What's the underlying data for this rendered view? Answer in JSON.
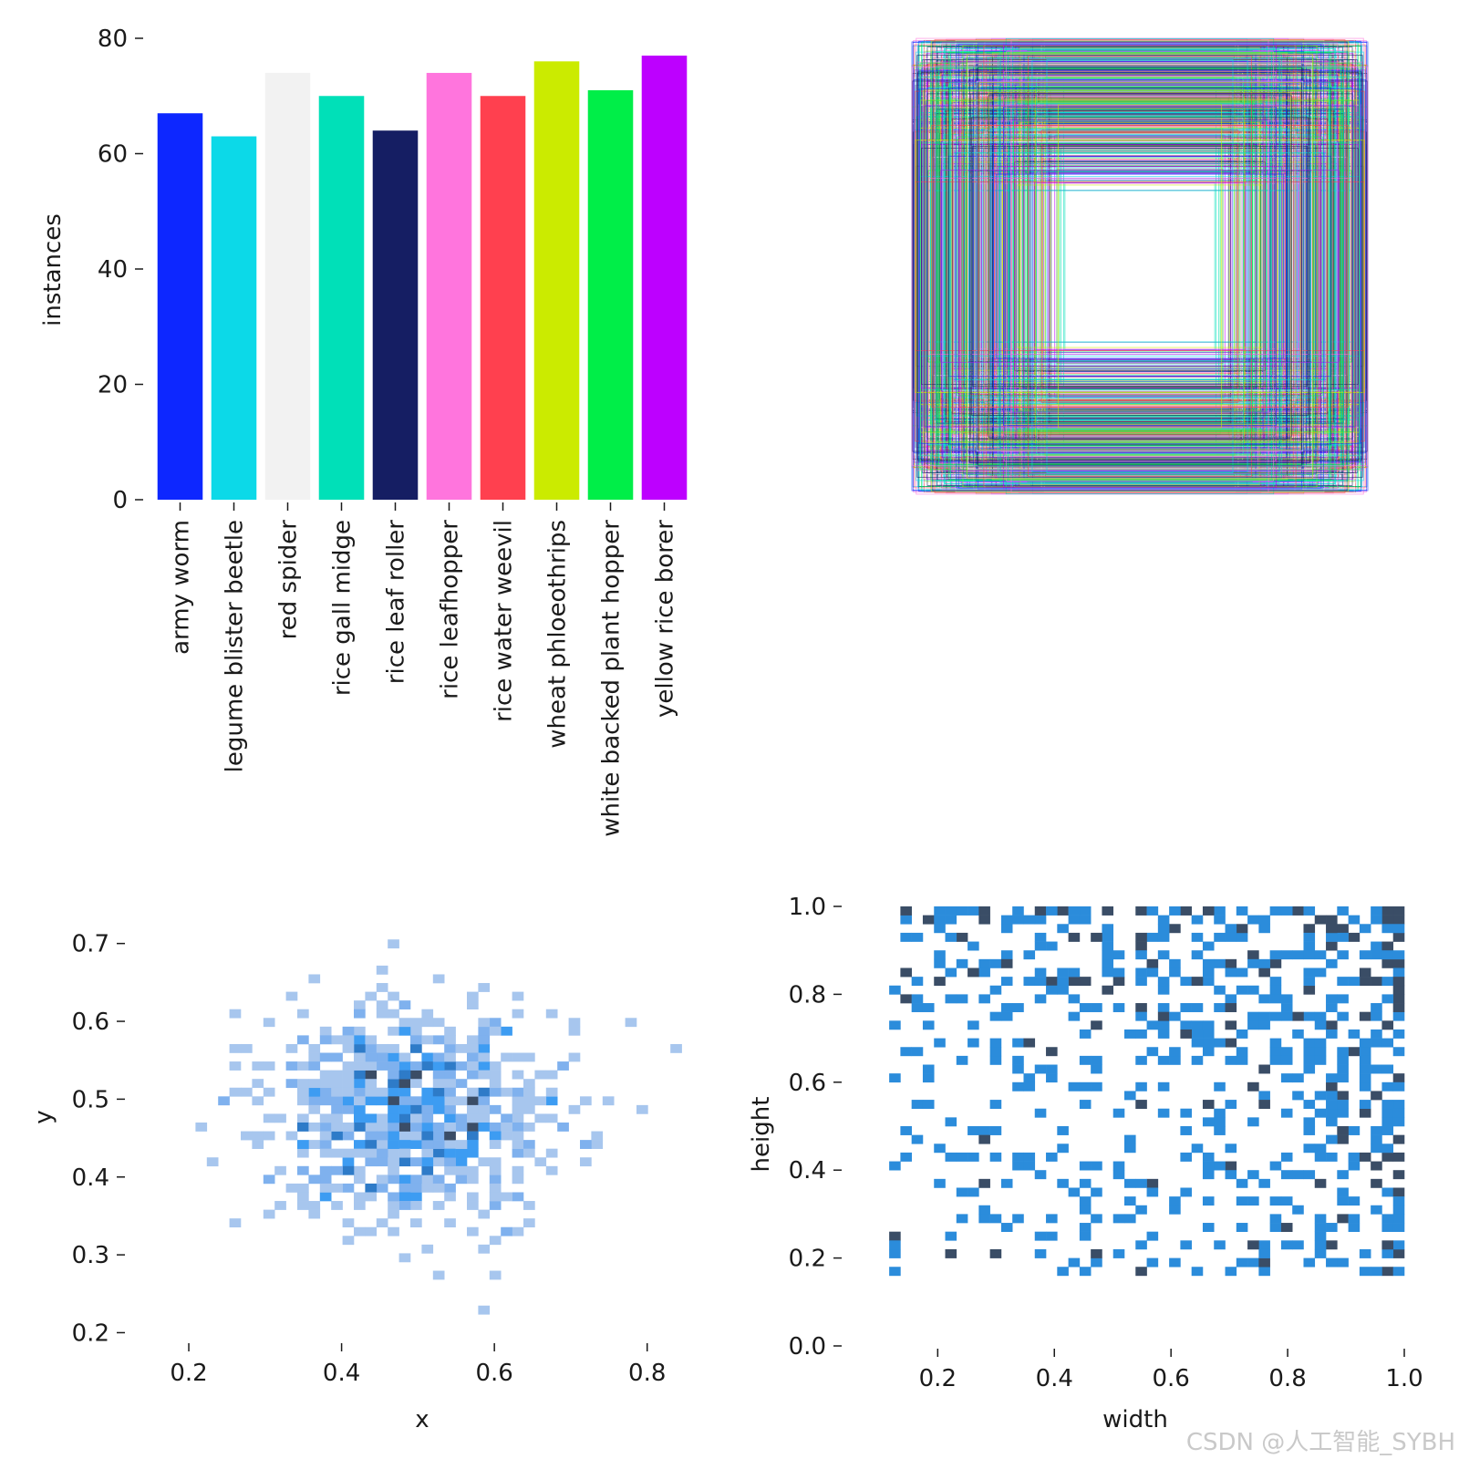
{
  "chart_data": [
    {
      "id": "labels-bar",
      "type": "bar",
      "title": "",
      "xlabel": "",
      "ylabel": "instances",
      "ylim": [
        0,
        80
      ],
      "yticks": [
        0,
        20,
        40,
        60,
        80
      ],
      "ytick_labels": [
        "0",
        "20",
        "40",
        "60",
        "80"
      ],
      "categories": [
        "army worm",
        "legume blister beetle",
        "red spider",
        "rice gall midge",
        "rice leaf roller",
        "rice leafhopper",
        "rice water weevil",
        "wheat phloeothrips",
        "white backed plant hopper",
        "yellow rice borer"
      ],
      "values": [
        67,
        63,
        74,
        70,
        64,
        74,
        70,
        76,
        71,
        77
      ],
      "colors": [
        "#0d27ff",
        "#0cd9e8",
        "#f2f2f2",
        "#00e0b8",
        "#151e63",
        "#ff75dd",
        "#ff404f",
        "#cbeb00",
        "#00ee48",
        "#bd00ff"
      ]
    },
    {
      "id": "box-overlay",
      "type": "other",
      "description": "",
      "series_colors": [
        "#0d27ff",
        "#0cd9e8",
        "#f2f2f2",
        "#00e0b8",
        "#151e63",
        "#ff75dd",
        "#ff404f",
        "#cbeb00",
        "#00ee48",
        "#bd00ff"
      ],
      "box_count": 700
    },
    {
      "id": "xy-hist",
      "type": "heatmap",
      "title": "",
      "xlabel": "x",
      "ylabel": "y",
      "xlim": [
        0.12,
        0.86
      ],
      "ylim": [
        0.19,
        0.75
      ],
      "xticks": [
        0.2,
        0.4,
        0.6,
        0.8
      ],
      "xtick_labels": [
        "0.2",
        "0.4",
        "0.6",
        "0.8"
      ],
      "yticks": [
        0.2,
        0.3,
        0.4,
        0.5,
        0.6,
        0.7
      ],
      "ytick_labels": [
        "0.2",
        "0.3",
        "0.4",
        "0.5",
        "0.6",
        "0.7"
      ],
      "bins": 50,
      "x_center": 0.49,
      "y_center": 0.48,
      "x_spread": 0.1,
      "y_spread": 0.075,
      "sample_count": 700,
      "palette": [
        "#a7c6ee",
        "#7fb1ee",
        "#3d9cf2",
        "#2e7bc8",
        "#3b4d66"
      ]
    },
    {
      "id": "wh-hist",
      "type": "heatmap",
      "title": "",
      "xlabel": "width",
      "ylabel": "height",
      "xlim": [
        0.04,
        1.0
      ],
      "ylim": [
        0.0,
        1.0
      ],
      "xticks": [
        0.2,
        0.4,
        0.6,
        0.8,
        1.0
      ],
      "xtick_labels": [
        "0.2",
        "0.4",
        "0.6",
        "0.8",
        "1.0"
      ],
      "yticks": [
        0.0,
        0.2,
        0.4,
        0.6,
        0.8,
        1.0
      ],
      "ytick_labels": [
        "0.0",
        "0.2",
        "0.4",
        "0.6",
        "0.8",
        "1.0"
      ],
      "bins": 50,
      "sample_count": 700,
      "palette": [
        "#2b8cdb",
        "#3a4d66"
      ]
    }
  ],
  "watermark": "CSDN @人工智能_SYBH"
}
